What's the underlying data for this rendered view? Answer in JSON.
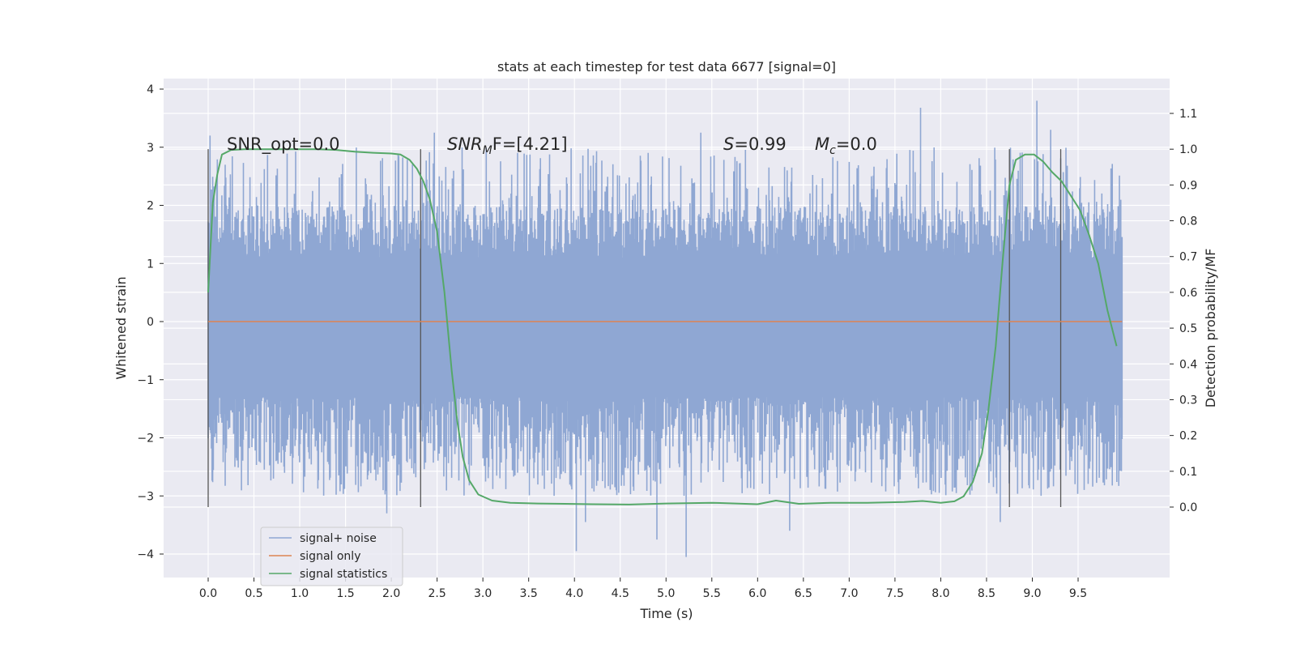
{
  "chart_data": {
    "type": "line",
    "title": "stats at each timestep for test data 6677 [signal=0]",
    "xlabel": "Time (s)",
    "ylabel": "Whitened strain",
    "y2label": "Detection probability/MF",
    "xlim": [
      -0.5,
      10.5
    ],
    "ylim": [
      -4.4,
      4.15
    ],
    "y2lim": [
      -0.2,
      1.2
    ],
    "x_ticks": [
      "0.0",
      "0.5",
      "1.0",
      "1.5",
      "2.0",
      "2.5",
      "3.0",
      "3.5",
      "4.0",
      "4.5",
      "5.0",
      "5.5",
      "6.0",
      "6.5",
      "7.0",
      "7.5",
      "8.0",
      "8.5",
      "9.0",
      "9.5"
    ],
    "y_ticks": [
      "4",
      "3",
      "2",
      "1",
      "0",
      "−1",
      "−2",
      "−3",
      "−4"
    ],
    "y2_ticks": [
      "1.1",
      "1.0",
      "0.9",
      "0.8",
      "0.7",
      "0.6",
      "0.5",
      "0.4",
      "0.3",
      "0.2",
      "0.1",
      "0.0"
    ],
    "grid": true,
    "legend_position": "lower-left",
    "annotations": {
      "snr_opt": "SNR_opt=0.0",
      "snr_mf_italic": "SNR",
      "snr_mf_sub": "M",
      "snr_mf_rest": "F=[4.21]",
      "s_italic": "S",
      "s_rest": "=0.99",
      "mc_italic": "M",
      "mc_sub": "c",
      "mc_rest": "=0.0"
    },
    "vertical_markers": [
      0.0,
      2.32,
      8.75,
      9.31
    ],
    "series": [
      {
        "name": "signal+ noise",
        "color": "#8fa7d3",
        "envelope": {
          "x_range": [
            0.0,
            9.98
          ],
          "core_band": [
            -1.3,
            1.1
          ],
          "typical_peak_max": 3.0,
          "typical_trough_min": -3.0,
          "notable_peaks": [
            [
              0.02,
              3.2
            ],
            [
              2.47,
              3.25
            ],
            [
              5.38,
              3.25
            ],
            [
              7.78,
              3.68
            ],
            [
              9.05,
              3.8
            ],
            [
              9.2,
              3.3
            ]
          ],
          "notable_troughs": [
            [
              1.95,
              -3.3
            ],
            [
              4.02,
              -3.95
            ],
            [
              4.12,
              -3.45
            ],
            [
              4.9,
              -3.75
            ],
            [
              5.22,
              -4.05
            ],
            [
              6.35,
              -3.6
            ],
            [
              8.65,
              -3.45
            ]
          ]
        }
      },
      {
        "name": "signal only",
        "color": "#dd8452",
        "x": [
          0.0,
          9.98
        ],
        "y": [
          0.0,
          0.0
        ]
      },
      {
        "name": "signal statistics",
        "color": "#55a868",
        "axis": "right",
        "x": [
          0.0,
          0.05,
          0.1,
          0.15,
          0.25,
          0.4,
          0.6,
          0.8,
          1.0,
          1.2,
          1.4,
          1.6,
          1.8,
          2.0,
          2.1,
          2.2,
          2.28,
          2.35,
          2.42,
          2.5,
          2.58,
          2.66,
          2.72,
          2.78,
          2.85,
          2.95,
          3.1,
          3.3,
          3.6,
          3.9,
          4.2,
          4.6,
          5.0,
          5.5,
          6.0,
          6.2,
          6.45,
          6.8,
          7.2,
          7.6,
          7.8,
          8.0,
          8.15,
          8.25,
          8.35,
          8.45,
          8.52,
          8.6,
          8.68,
          8.75,
          8.82,
          8.92,
          9.02,
          9.12,
          9.22,
          9.32,
          9.42,
          9.52,
          9.62,
          9.72,
          9.82,
          9.92
        ],
        "y": [
          0.6,
          0.85,
          0.93,
          0.985,
          0.998,
          1.0,
          1.0,
          1.0,
          1.0,
          1.0,
          0.998,
          0.993,
          0.99,
          0.988,
          0.985,
          0.97,
          0.945,
          0.91,
          0.86,
          0.77,
          0.6,
          0.38,
          0.24,
          0.14,
          0.075,
          0.035,
          0.018,
          0.012,
          0.01,
          0.009,
          0.008,
          0.007,
          0.01,
          0.012,
          0.008,
          0.018,
          0.009,
          0.012,
          0.012,
          0.014,
          0.017,
          0.012,
          0.016,
          0.03,
          0.07,
          0.15,
          0.27,
          0.45,
          0.7,
          0.9,
          0.97,
          0.985,
          0.985,
          0.965,
          0.935,
          0.91,
          0.87,
          0.83,
          0.76,
          0.68,
          0.55,
          0.45
        ]
      }
    ]
  }
}
